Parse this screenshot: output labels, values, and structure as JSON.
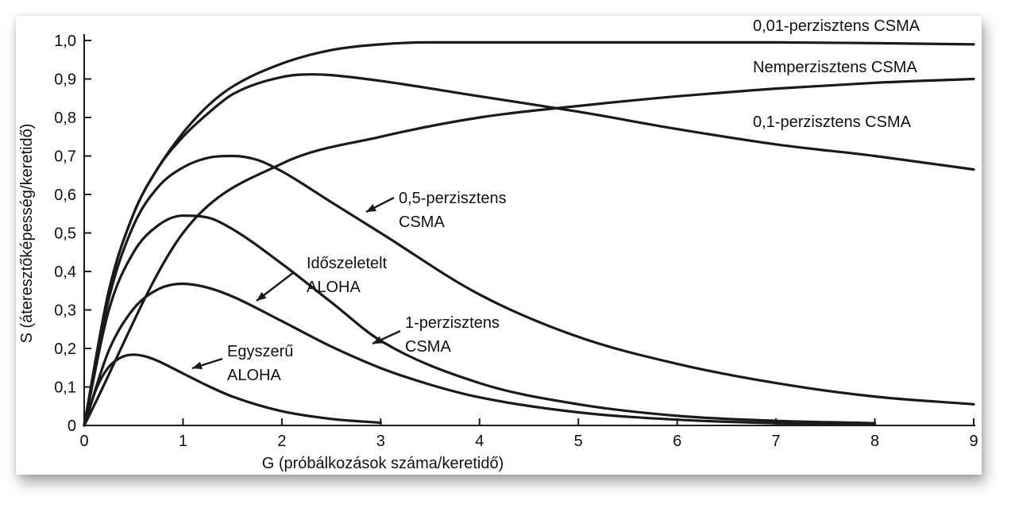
{
  "chart_data": {
    "type": "line",
    "title": "",
    "xlabel": "G (próbálkozások száma/keretidő)",
    "ylabel": "S (áteresztőképesség/keretidő)",
    "xlim": [
      0,
      9
    ],
    "ylim": [
      0,
      1.0
    ],
    "x_ticks": [
      {
        "value": 0,
        "label": "0"
      },
      {
        "value": 1,
        "label": "1"
      },
      {
        "value": 2,
        "label": "2"
      },
      {
        "value": 3,
        "label": "3"
      },
      {
        "value": 4,
        "label": "4"
      },
      {
        "value": 5,
        "label": "5"
      },
      {
        "value": 6,
        "label": "6"
      },
      {
        "value": 7,
        "label": "7"
      },
      {
        "value": 8,
        "label": "8"
      },
      {
        "value": 9,
        "label": "9"
      }
    ],
    "y_ticks": [
      {
        "value": 0,
        "label": "0"
      },
      {
        "value": 0.1,
        "label": "0,1"
      },
      {
        "value": 0.2,
        "label": "0,2"
      },
      {
        "value": 0.3,
        "label": "0,3"
      },
      {
        "value": 0.4,
        "label": "0,4"
      },
      {
        "value": 0.5,
        "label": "0,5"
      },
      {
        "value": 0.6,
        "label": "0,6"
      },
      {
        "value": 0.7,
        "label": "0,7"
      },
      {
        "value": 0.8,
        "label": "0,8"
      },
      {
        "value": 0.9,
        "label": "0,9"
      },
      {
        "value": 1.0,
        "label": "1,0"
      }
    ],
    "grid": false,
    "colors": {
      "line": "#1a1a1a",
      "text": "#111111"
    },
    "series": [
      {
        "id": "p001",
        "label_lines": [
          "0,01-perzisztens CSMA"
        ],
        "x": [
          0,
          0.25,
          0.5,
          0.75,
          1.0,
          1.25,
          1.5,
          2.0,
          2.5,
          3.0,
          3.5,
          4.0,
          5.0,
          6.0,
          7.0,
          8.0,
          9.0
        ],
        "y": [
          0,
          0.35,
          0.55,
          0.67,
          0.76,
          0.83,
          0.88,
          0.94,
          0.975,
          0.99,
          0.995,
          0.995,
          0.995,
          0.995,
          0.995,
          0.993,
          0.99
        ]
      },
      {
        "id": "nonp",
        "label_lines": [
          "Nemperzisztens CSMA"
        ],
        "x": [
          0,
          1.0,
          2.0,
          3.0,
          4.0,
          5.0,
          6.0,
          7.0,
          8.0,
          9.0
        ],
        "y": [
          0,
          0.5,
          0.68,
          0.75,
          0.8,
          0.83,
          0.855,
          0.875,
          0.89,
          0.9
        ]
      },
      {
        "id": "p01",
        "label_lines": [
          "0,1-perzisztens CSMA"
        ],
        "x": [
          0,
          0.25,
          0.5,
          0.75,
          1.0,
          1.25,
          1.5,
          2.0,
          2.3,
          2.5,
          3.0,
          4.0,
          5.0,
          6.0,
          7.0,
          8.0,
          9.0
        ],
        "y": [
          0,
          0.35,
          0.55,
          0.67,
          0.75,
          0.81,
          0.86,
          0.905,
          0.912,
          0.91,
          0.895,
          0.855,
          0.815,
          0.77,
          0.73,
          0.7,
          0.665
        ]
      },
      {
        "id": "p05",
        "label_lines": [
          "0,5-perzisztens",
          "CSMA"
        ],
        "x": [
          0,
          0.25,
          0.5,
          0.75,
          1.0,
          1.25,
          1.5,
          1.75,
          2.0,
          2.5,
          3.0,
          4.0,
          5.0,
          6.0,
          7.0,
          8.0,
          9.0
        ],
        "y": [
          0,
          0.33,
          0.52,
          0.62,
          0.67,
          0.695,
          0.7,
          0.69,
          0.66,
          0.58,
          0.5,
          0.34,
          0.23,
          0.16,
          0.11,
          0.075,
          0.055
        ]
      },
      {
        "id": "p1",
        "label_lines": [
          "1-perzisztens",
          "CSMA"
        ],
        "x": [
          0,
          0.25,
          0.5,
          0.75,
          1.0,
          1.25,
          1.5,
          2.0,
          2.5,
          3.0,
          4.0,
          5.0,
          6.0,
          7.0,
          8.0
        ],
        "y": [
          0,
          0.3,
          0.45,
          0.52,
          0.545,
          0.54,
          0.51,
          0.42,
          0.32,
          0.22,
          0.11,
          0.055,
          0.025,
          0.012,
          0.006
        ]
      },
      {
        "id": "slotted",
        "label_lines": [
          "Időszeletelt",
          "ALOHA"
        ],
        "x": [
          0,
          0.25,
          0.5,
          0.75,
          1.0,
          1.25,
          1.5,
          2.0,
          2.5,
          3.0,
          3.5,
          4.0,
          5.0,
          6.0,
          7.0,
          8.0
        ],
        "y": [
          0,
          0.195,
          0.303,
          0.354,
          0.368,
          0.358,
          0.335,
          0.271,
          0.205,
          0.149,
          0.106,
          0.073,
          0.034,
          0.015,
          0.006,
          0.003
        ]
      },
      {
        "id": "pure",
        "label_lines": [
          "Egyszerű",
          "ALOHA"
        ],
        "x": [
          0,
          0.125,
          0.25,
          0.375,
          0.5,
          0.625,
          0.75,
          1.0,
          1.25,
          1.5,
          2.0,
          2.5,
          3.0
        ],
        "y": [
          0,
          0.097,
          0.152,
          0.177,
          0.184,
          0.179,
          0.167,
          0.135,
          0.103,
          0.075,
          0.037,
          0.017,
          0.007
        ]
      }
    ]
  }
}
